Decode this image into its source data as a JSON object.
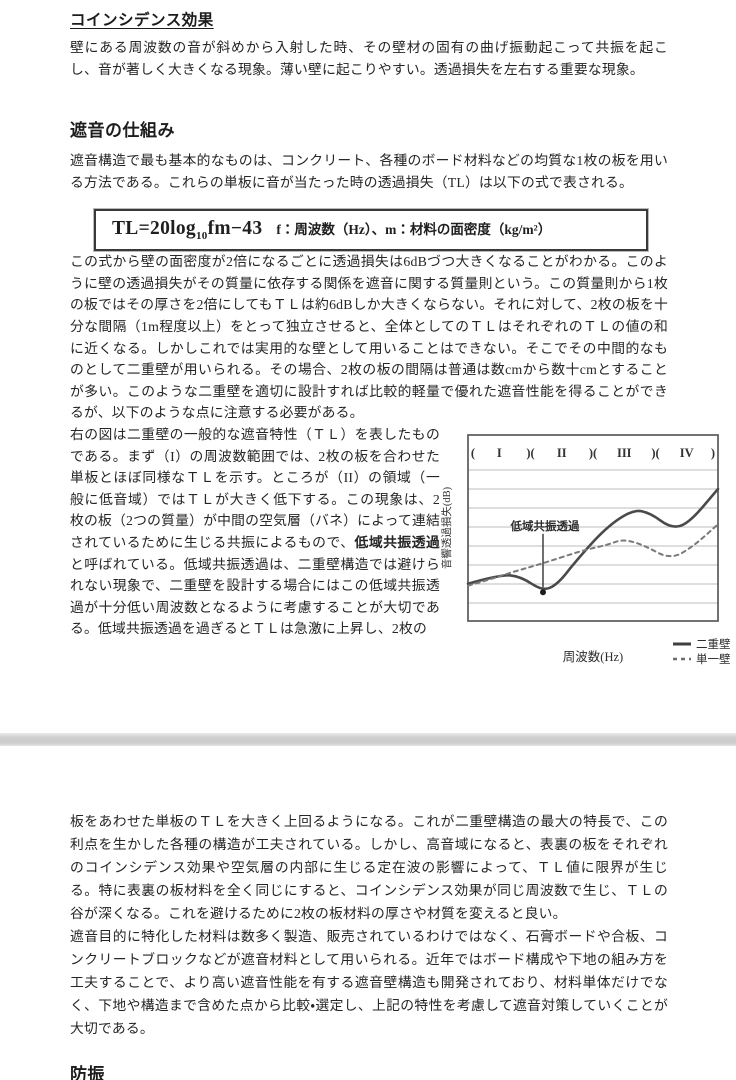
{
  "page1": {
    "coincidence": {
      "heading": "コインシデンス効果",
      "body": "壁にある周波数の音が斜めから入射した時、その壁材の固有の曲げ振動起こって共振を起こし、音が著しく大きくなる現象。薄い壁に起こりやすい。透過損失を左右する重要な現象。"
    },
    "shaon": {
      "heading": "遮音の仕組み",
      "intro": "遮音構造で最も基本的なものは、コンクリート、各種のボード材料などの均質な1枚の板を用いる方法である。これらの単板に音が当たった時の透過損失（TL）は以下の式で表される。",
      "formula": {
        "lhs": "TL=20log",
        "sub": "10",
        "rhs": "fm−43",
        "note": "f：周波数（Hz）、m：材料の面密度（kg/m²）"
      },
      "body1": "この式から壁の面密度が2倍になるごとに透過損失は6dBづつ大きくなることがわかる。このように壁の透過損失がその質量に依存する関係を遮音に関する質量則という。この質量則から1枚の板ではその厚さを2倍にしてもＴＬは約6dBしか大きくならない。それに対して、2枚の板を十分な間隔（1m程度以上）をとって独立させると、全体としてのＴＬはそれぞれのＴＬの値の和に近くなる。しかしこれでは実用的な壁として用いることはできない。そこでその中間的なものとして二重壁が用いられる。その場合、2枚の板の間隔は普通は数cmから数十cmとすることが多い。このような二重壁を適切に設計すれば比較的軽量で優れた遮音性能を得ることができるが、以下のような点に注意する必要がある。",
      "body2_pre": "右の図は二重壁の一般的な遮音特性（ＴＬ）を表したものである。まず（I）の周波数範囲では、2枚の板を合わせた単板とほぼ同様なＴＬを示す。ところが（II）の領域（一般に低音域）ではＴＬが大きく低下する。この現象は、2枚の板（2つの質量）が中間の空気層（バネ）によって連結されているために生じる共振によるもので、",
      "body2_bold": "低域共振透過",
      "body2_post": "と呼ばれている。低域共振透過は、二重壁構造では避けられない現象で、二重壁を設計する場合にはこの低域共振透過が十分低い周波数となるように考慮することが大切である。低域共振透過を過ぎるとＴＬは急激に上昇し、2枚の"
    }
  },
  "chart_data": {
    "type": "line",
    "xlabel": "周波数(Hz)",
    "ylabel": "音響透過損失(dB)",
    "regions": [
      "I",
      "II",
      "III",
      "IV"
    ],
    "grid": "horizontal, unlabeled axes (qualitative diagram)",
    "legend_position": "below-right",
    "annotation": {
      "text": "低域共振透過",
      "x": 30,
      "y_point": 16,
      "y_text": 49
    },
    "series": [
      {
        "name": "二重壁",
        "style": "solid",
        "x": [
          0,
          13,
          21,
          30,
          36,
          43,
          55,
          66,
          73,
          81,
          88,
          100
        ],
        "y": [
          20,
          25,
          24,
          16,
          20,
          32,
          50,
          60,
          58,
          50,
          52,
          71
        ]
      },
      {
        "name": "単一壁",
        "style": "dashed",
        "x": [
          0,
          8,
          17,
          30,
          46,
          56,
          62,
          70,
          81,
          90,
          100
        ],
        "y": [
          19,
          22,
          26,
          31,
          38,
          41,
          44,
          41,
          33,
          40,
          52
        ]
      }
    ],
    "note": "x/y are percentages of the plot box (no numeric scale printed); dip of solid curve = 低域共振透過 resonance dip"
  },
  "page2": {
    "para1": "板をあわせた単板のＴＬを大きく上回るようになる。これが二重壁構造の最大の特長で、この利点を生かした各種の構造が工夫されている。しかし、高音域になると、表裏の板をそれぞれのコインシデンス効果や空気層の内部に生じる定在波の影響によって、ＴＬ値に限界が生じる。特に表裏の板材料を全く同じにすると、コインシデンス効果が同じ周波数で生じ、ＴＬの谷が深くなる。これを避けるために2枚の板材料の厚さや材質を変えると良い。",
    "para2": "遮音目的に特化した材料は数多く製造、販売されているわけではなく、石膏ボードや合板、コンクリートブロックなどが遮音材料として用いられる。近年ではボード構成や下地の組み方を工夫することで、より高い遮音性能を有する遮音壁構造も開発されており、材料単体だけでなく、下地や構造まで含めた点から比較・選定し、上記の特性を考慮して遮音対策していくことが大切である。",
    "next_heading": "防振"
  }
}
